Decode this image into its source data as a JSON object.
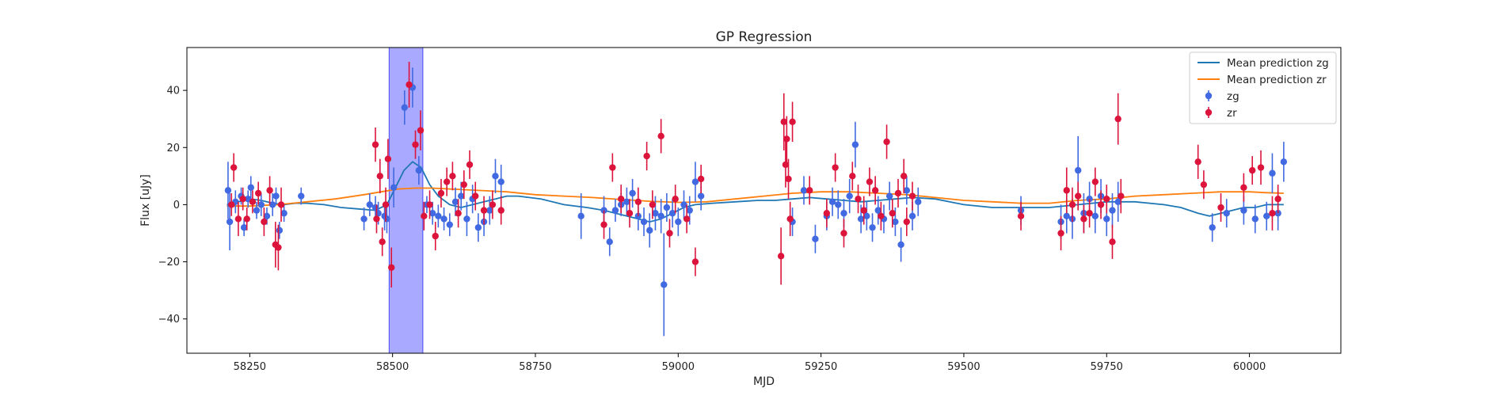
{
  "chart_data": {
    "type": "scatter",
    "title": "GP Regression",
    "xlabel": "MJD",
    "ylabel": "Flux [uJy]",
    "xlim": [
      58140,
      60160
    ],
    "ylim": [
      -52,
      55
    ],
    "xticks": [
      58250,
      58500,
      58750,
      59000,
      59250,
      59500,
      59750,
      60000
    ],
    "yticks": [
      -40,
      -20,
      0,
      20,
      40
    ],
    "grid": false,
    "legend_position": "top-right",
    "highlight_span": {
      "x0": 58494,
      "x1": 58553,
      "color": "#7b7bff"
    },
    "lines": [
      {
        "name": "Mean prediction zg",
        "color": "#1f77b4",
        "x": [
          58210,
          58230,
          58250,
          58270,
          58290,
          58310,
          58330,
          58350,
          58380,
          58410,
          58440,
          58470,
          58490,
          58505,
          58520,
          58535,
          58550,
          58565,
          58580,
          58600,
          58620,
          58640,
          58660,
          58680,
          58700,
          58720,
          58760,
          58800,
          58840,
          58870,
          58890,
          58910,
          58930,
          58950,
          58970,
          58990,
          59010,
          59030,
          59060,
          59100,
          59140,
          59170,
          59200,
          59230,
          59260,
          59290,
          59320,
          59350,
          59380,
          59410,
          59450,
          59500,
          59550,
          59600,
          59650,
          59700,
          59750,
          59800,
          59850,
          59880,
          59910,
          59930,
          59950,
          59970,
          59990,
          60010,
          60030,
          60060
        ],
        "y": [
          0,
          1,
          2,
          1.5,
          0.5,
          0,
          0.5,
          0.5,
          0,
          -1,
          -1.5,
          -2,
          0,
          6,
          12,
          15,
          13,
          7,
          3,
          0,
          -1,
          0,
          1,
          2,
          3,
          3,
          2,
          0,
          -1,
          -2,
          -3,
          -4,
          -5,
          -6,
          -5,
          -3,
          -1,
          0,
          0.5,
          1,
          1.5,
          1.5,
          2,
          2.5,
          2,
          1.5,
          1,
          1.5,
          2,
          2.5,
          2,
          0,
          -1,
          -1,
          -1,
          0,
          1,
          1,
          0,
          -1,
          -3,
          -4,
          -3,
          -2,
          -1,
          -1,
          0,
          0
        ]
      },
      {
        "name": "Mean prediction zr",
        "color": "#ff7f0e",
        "x": [
          58210,
          58250,
          58300,
          58350,
          58400,
          58450,
          58480,
          58510,
          58540,
          58570,
          58600,
          58650,
          58700,
          58750,
          58800,
          58850,
          58900,
          58950,
          59000,
          59050,
          59100,
          59150,
          59200,
          59250,
          59300,
          59350,
          59400,
          59450,
          59500,
          59550,
          59600,
          59650,
          59700,
          59750,
          59800,
          59850,
          59900,
          59950,
          60000,
          60030,
          60060
        ],
        "y": [
          -0.5,
          -0.5,
          0,
          1,
          2,
          3.5,
          4.5,
          5.5,
          5.8,
          5.8,
          5.5,
          5,
          4.5,
          3.5,
          3,
          2.5,
          1.8,
          1.2,
          0.8,
          1,
          2,
          3,
          4,
          4.5,
          4.5,
          4,
          3.5,
          2.5,
          1.5,
          1,
          0.5,
          0.5,
          1.5,
          2,
          3,
          3.5,
          4,
          4.5,
          4.5,
          4.2,
          4
        ]
      }
    ],
    "series": [
      {
        "name": "zg",
        "color": "#4169e1",
        "x": [
          58212,
          58215,
          58225,
          58235,
          58240,
          58247,
          58252,
          58262,
          58270,
          58280,
          58290,
          58296,
          58302,
          58310,
          58340,
          58450,
          58460,
          58470,
          58475,
          58486,
          58490,
          58502,
          58521,
          58535,
          58546,
          58560,
          58570,
          58580,
          58590,
          58600,
          58610,
          58620,
          58630,
          58640,
          58650,
          58660,
          58670,
          58680,
          58690,
          58830,
          58870,
          58880,
          58890,
          58900,
          58910,
          58920,
          58930,
          58940,
          58950,
          58960,
          58970,
          58975,
          58980,
          58990,
          59000,
          59010,
          59020,
          59030,
          59040,
          59200,
          59220,
          59240,
          59260,
          59270,
          59280,
          59290,
          59300,
          59310,
          59320,
          59330,
          59340,
          59350,
          59360,
          59370,
          59380,
          59390,
          59400,
          59410,
          59420,
          59600,
          59670,
          59680,
          59690,
          59700,
          59710,
          59720,
          59730,
          59740,
          59750,
          59760,
          59770,
          59935,
          59960,
          59990,
          60010,
          60030,
          60040,
          60050,
          60060
        ],
        "y": [
          5,
          -6,
          1,
          3,
          -8,
          2,
          6,
          -2,
          0,
          -4,
          0,
          3,
          -9,
          -3,
          3,
          -5,
          0,
          -1,
          -3,
          -4,
          -5,
          6,
          34,
          41,
          12,
          0,
          -3,
          -4,
          -5,
          -7,
          1,
          3,
          -5,
          2,
          -8,
          -6,
          -2,
          10,
          8,
          -4,
          -2,
          -13,
          -2,
          0,
          1,
          4,
          -4,
          -6,
          -9,
          -3,
          -4,
          -28,
          -1,
          -3,
          -6,
          0,
          -2,
          8,
          3,
          -6,
          5,
          -12,
          -4,
          1,
          0,
          -3,
          3,
          21,
          -5,
          -4,
          -8,
          -2,
          -5,
          3,
          -6,
          -14,
          5,
          -4,
          1,
          -2,
          -6,
          -4,
          -5,
          12,
          -3,
          2,
          -4,
          3,
          -5,
          -2,
          1,
          -8,
          -3,
          -2,
          -5,
          -4,
          11,
          -3,
          15
        ],
        "err": [
          10,
          10,
          4,
          3,
          3,
          3,
          4,
          3,
          4,
          3,
          4,
          3,
          3,
          3,
          3,
          4,
          4,
          4,
          4,
          5,
          5,
          7,
          6,
          7,
          5,
          3,
          4,
          4,
          4,
          4,
          5,
          5,
          6,
          5,
          5,
          5,
          5,
          6,
          6,
          8,
          5,
          5,
          4,
          4,
          5,
          5,
          5,
          5,
          6,
          6,
          6,
          18,
          5,
          5,
          5,
          5,
          5,
          7,
          5,
          5,
          5,
          5,
          5,
          5,
          5,
          5,
          6,
          8,
          5,
          5,
          5,
          5,
          5,
          5,
          5,
          6,
          5,
          5,
          5,
          5,
          6,
          6,
          7,
          12,
          7,
          6,
          6,
          6,
          6,
          6,
          7,
          5,
          5,
          5,
          5,
          5,
          7,
          6,
          7
        ]
      },
      {
        "name": "zr",
        "color": "#dc143c",
        "x": [
          58218,
          58222,
          58230,
          58238,
          58245,
          58255,
          58265,
          58275,
          58285,
          58295,
          58300,
          58305,
          58470,
          58472,
          58478,
          58482,
          58488,
          58492,
          58498,
          58529,
          58540,
          58549,
          58555,
          58565,
          58575,
          58585,
          58595,
          58605,
          58615,
          58625,
          58635,
          58645,
          58660,
          58675,
          58690,
          58870,
          58885,
          58900,
          58915,
          58930,
          58945,
          58955,
          58970,
          58985,
          58995,
          59015,
          59030,
          59040,
          59180,
          59185,
          59188,
          59190,
          59193,
          59196,
          59200,
          59230,
          59260,
          59275,
          59290,
          59305,
          59315,
          59325,
          59335,
          59345,
          59355,
          59365,
          59375,
          59385,
          59395,
          59400,
          59410,
          59600,
          59670,
          59680,
          59690,
          59700,
          59710,
          59720,
          59730,
          59740,
          59750,
          59760,
          59770,
          59775,
          59910,
          59920,
          59950,
          59990,
          60005,
          60020,
          60040,
          60050
        ],
        "y": [
          0,
          13,
          -5,
          2,
          -5,
          1,
          4,
          -6,
          5,
          -14,
          -15,
          0,
          21,
          -5,
          10,
          -13,
          0,
          16,
          -22,
          42,
          21,
          26,
          -4,
          0,
          -11,
          4,
          8,
          10,
          -3,
          7,
          14,
          3,
          -2,
          0,
          -2,
          -7,
          13,
          2,
          -3,
          1,
          17,
          0,
          24,
          -10,
          2,
          -5,
          -20,
          9,
          -18,
          29,
          14,
          23,
          9,
          -5,
          29,
          5,
          -3,
          13,
          -10,
          10,
          2,
          -2,
          8,
          5,
          -4,
          22,
          -3,
          4,
          10,
          -6,
          3,
          -4,
          -10,
          5,
          0,
          3,
          -5,
          -3,
          8,
          0,
          2,
          -13,
          30,
          3,
          15,
          7,
          -1,
          6,
          12,
          13,
          -3,
          2
        ],
        "err": [
          4,
          5,
          6,
          4,
          4,
          4,
          4,
          5,
          5,
          8,
          8,
          6,
          6,
          5,
          6,
          5,
          6,
          7,
          7,
          8,
          5,
          7,
          5,
          5,
          5,
          5,
          5,
          5,
          5,
          5,
          5,
          5,
          5,
          5,
          5,
          5,
          5,
          5,
          5,
          5,
          5,
          5,
          6,
          5,
          5,
          5,
          5,
          5,
          10,
          10,
          8,
          8,
          7,
          6,
          7,
          5,
          5,
          5,
          5,
          5,
          5,
          5,
          5,
          5,
          5,
          6,
          5,
          5,
          6,
          5,
          5,
          5,
          6,
          8,
          6,
          5,
          5,
          5,
          5,
          5,
          5,
          6,
          9,
          6,
          6,
          5,
          5,
          5,
          5,
          6,
          6,
          5
        ]
      }
    ]
  }
}
